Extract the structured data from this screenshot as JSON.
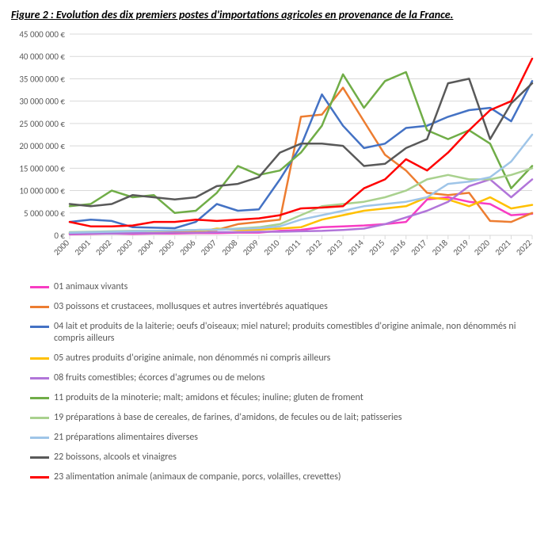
{
  "title": "Figure 2 : Evolution des dix premiers postes d'importations agricoles en provenance de la France.",
  "chart": {
    "type": "line",
    "background_color": "#ffffff",
    "grid_color": "#d9d9d9",
    "axis_text_color": "#595959",
    "title_fontsize": 14,
    "label_fontsize": 11,
    "line_width": 2.5,
    "x": {
      "categories": [
        "2000",
        "2001",
        "2002",
        "2003",
        "2004",
        "2005",
        "2006",
        "2007",
        "2008",
        "2009",
        "2010",
        "2011",
        "2012",
        "2013",
        "2014",
        "2015",
        "2016",
        "2017",
        "2018",
        "2019",
        "2020",
        "2021",
        "2022"
      ]
    },
    "y": {
      "min": 0,
      "max": 45000000,
      "step": 5000000,
      "ticks": [
        "0 €",
        "5 000 000 €",
        "10 000 000 €",
        "15 000 000 €",
        "20 000 000 €",
        "25 000 000 €",
        "30 000 000 €",
        "35 000 000 €",
        "40 000 000 €",
        "45 000 000 €"
      ]
    },
    "series": [
      {
        "id": "s01",
        "color": "#f83cc3",
        "label": "01 animaux vivants",
        "values": [
          200000,
          300000,
          400000,
          300000,
          400000,
          400000,
          500000,
          500000,
          600000,
          600000,
          1000000,
          1200000,
          1800000,
          2000000,
          2200000,
          2500000,
          3000000,
          8000000,
          8500000,
          7500000,
          7000000,
          4500000,
          4800000
        ]
      },
      {
        "id": "s03",
        "color": "#ed7d31",
        "label": "03 poissons et crustacees, mollusques et autres invertébrés aquatiques",
        "values": [
          500000,
          600000,
          700000,
          800000,
          900000,
          900000,
          1000000,
          1200000,
          2500000,
          3000000,
          3500000,
          26500000,
          27000000,
          33000000,
          25500000,
          18000000,
          14500000,
          9500000,
          9000000,
          9500000,
          3200000,
          3000000,
          5000000
        ]
      },
      {
        "id": "s04",
        "color": "#4472c4",
        "label": "04 lait et produits de la laiterie; oeufs d'oiseaux; miel naturel; produits comestibles d'origine animale, non dénommés ni compris ailleurs",
        "values": [
          3000000,
          3500000,
          3200000,
          1800000,
          1700000,
          1600000,
          3000000,
          7000000,
          5500000,
          5800000,
          12500000,
          20000000,
          31500000,
          24500000,
          19500000,
          20500000,
          24000000,
          24500000,
          26500000,
          28000000,
          28500000,
          25500000,
          34500000
        ]
      },
      {
        "id": "s05",
        "color": "#ffc000",
        "label": "05 autres produits d'origine animale, non dénommés ni compris ailleurs",
        "values": [
          400000,
          400000,
          500000,
          500000,
          600000,
          600000,
          700000,
          1500000,
          1200000,
          1300000,
          1500000,
          1800000,
          3500000,
          4500000,
          5500000,
          6000000,
          6500000,
          8500000,
          8000000,
          6500000,
          8500000,
          6000000,
          6800000
        ]
      },
      {
        "id": "s08",
        "color": "#b175d9",
        "label": "08 fruits comestibles; écorces d'agrumes ou de melons",
        "values": [
          300000,
          400000,
          400000,
          500000,
          500000,
          600000,
          600000,
          700000,
          700000,
          800000,
          800000,
          900000,
          1000000,
          1200000,
          1500000,
          2500000,
          4000000,
          5500000,
          7500000,
          11000000,
          12500000,
          8500000,
          12500000
        ]
      },
      {
        "id": "s11",
        "color": "#70ad47",
        "label": "11 produits de la minoterie; malt; amidons et fécules; inuline; gluten de froment",
        "values": [
          6500000,
          7000000,
          10000000,
          8500000,
          9000000,
          5000000,
          5500000,
          9500000,
          15500000,
          13500000,
          14500000,
          18500000,
          24500000,
          36000000,
          28500000,
          34500000,
          36500000,
          23500000,
          21500000,
          23500000,
          20500000,
          10500000,
          15500000
        ]
      },
      {
        "id": "s19",
        "color": "#a9d18e",
        "label": "19 préparations à base de cereales, de farines, d'amidons, de fecules ou de lait; patisseries",
        "values": [
          700000,
          800000,
          900000,
          1000000,
          1000000,
          1100000,
          1200000,
          1300000,
          1500000,
          1800000,
          2500000,
          4500000,
          6500000,
          7000000,
          7500000,
          8500000,
          10000000,
          12500000,
          13500000,
          12500000,
          12500000,
          13500000,
          15000000
        ]
      },
      {
        "id": "s21",
        "color": "#9fc5e8",
        "label": "21 préparations alimentaires diverses",
        "values": [
          600000,
          700000,
          800000,
          900000,
          1000000,
          1100000,
          1200000,
          1300000,
          1400000,
          1600000,
          2000000,
          3500000,
          4500000,
          5500000,
          6500000,
          7000000,
          7500000,
          8500000,
          11500000,
          12000000,
          13000000,
          16500000,
          22500000
        ]
      },
      {
        "id": "s22",
        "color": "#595959",
        "label": "22 boissons, alcools et vinaigres",
        "values": [
          7000000,
          6500000,
          7000000,
          9000000,
          8500000,
          8000000,
          8500000,
          11000000,
          11500000,
          13000000,
          18500000,
          20500000,
          20500000,
          20000000,
          15500000,
          16000000,
          19500000,
          21500000,
          34000000,
          35000000,
          21500000,
          29500000,
          34000000
        ]
      },
      {
        "id": "s23",
        "color": "#ff0000",
        "label": "23 alimentation animale (animaux de companie, porcs, volailles, crevettes)",
        "values": [
          3000000,
          2000000,
          2000000,
          2200000,
          3000000,
          3000000,
          3500000,
          3200000,
          3500000,
          3800000,
          4500000,
          6000000,
          6200000,
          6500000,
          10500000,
          12500000,
          17000000,
          14500000,
          18500000,
          23500000,
          28000000,
          30000000,
          39500000
        ]
      }
    ]
  }
}
